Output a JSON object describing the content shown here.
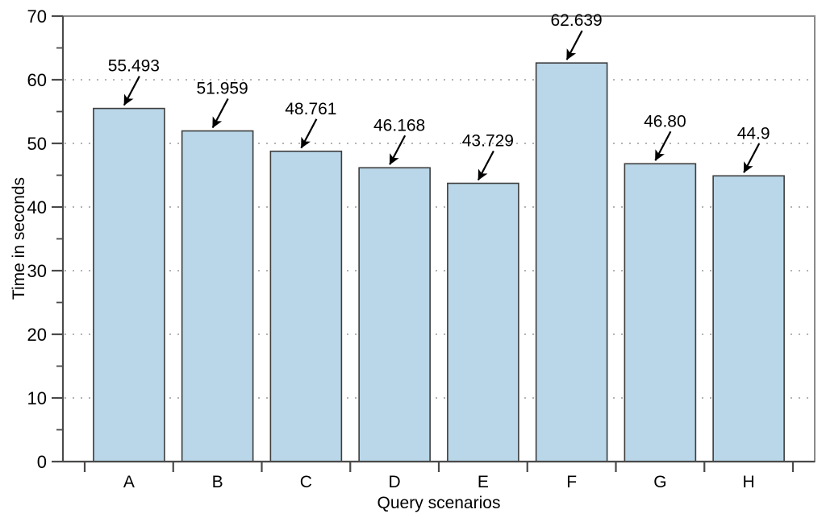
{
  "chart_data": {
    "type": "bar",
    "categories": [
      "A",
      "B",
      "C",
      "D",
      "E",
      "F",
      "G",
      "H"
    ],
    "values": [
      55.493,
      51.959,
      48.761,
      46.168,
      43.729,
      62.639,
      46.8,
      44.9
    ],
    "annotations": [
      "55.493",
      "51.959",
      "48.761",
      "46.168",
      "43.729",
      "62.639",
      "46.80",
      "44.9"
    ],
    "title": "",
    "xlabel": "Query scenarios",
    "ylabel": "Time in seconds",
    "ylim": [
      0,
      70
    ],
    "ytick_labels": [
      "0",
      "10",
      "20",
      "30",
      "40",
      "50",
      "60",
      "70"
    ],
    "ytick_values": [
      0,
      10,
      20,
      30,
      40,
      50,
      60,
      70
    ],
    "yminor_step": 5,
    "grid": "dotted-horizontal-at-major-ticks",
    "legend": "none",
    "colors": {
      "bar_fill": "#b9d7e8",
      "bar_border": "#3d3d3d",
      "axis": "#4a4a4a",
      "frame": "#8a8a8a",
      "grid": "#b3b3b3",
      "annotation_arrow": "#000000",
      "text": "#000000",
      "background": "#ffffff"
    }
  }
}
